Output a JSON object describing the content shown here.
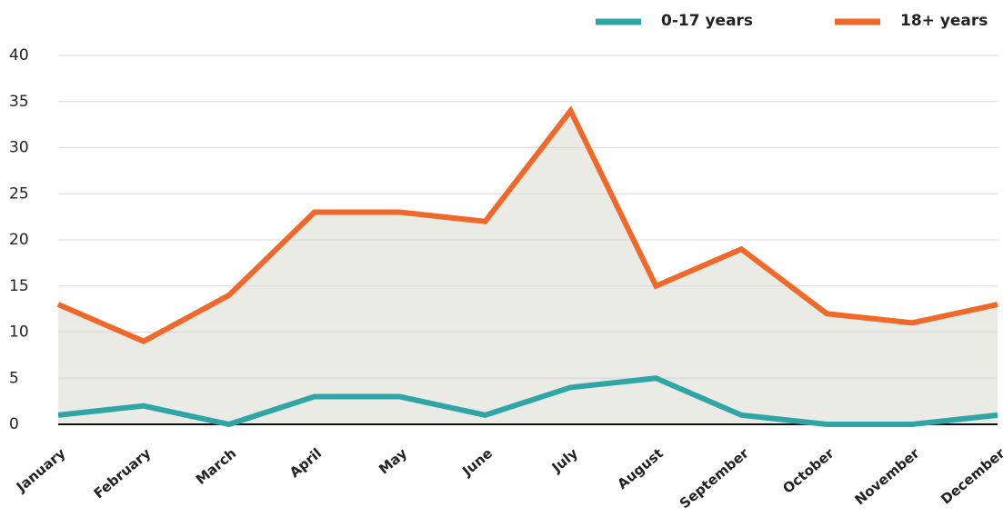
{
  "chart_data": {
    "type": "line",
    "categories": [
      "January",
      "February",
      "March",
      "April",
      "May",
      "June",
      "July",
      "August",
      "September",
      "October",
      "November",
      "December"
    ],
    "series": [
      {
        "name": "0-17 years",
        "color": "#2fa6a5",
        "values": [
          1,
          2,
          0,
          3,
          3,
          1,
          4,
          5,
          1,
          0,
          0,
          1
        ]
      },
      {
        "name": "18+ years",
        "color": "#f0692a",
        "values": [
          13,
          9,
          14,
          23,
          23,
          22,
          34,
          15,
          19,
          12,
          11,
          13
        ],
        "area_color": "#ebebe6"
      }
    ],
    "ylim": [
      0,
      40
    ],
    "yticks": [
      0,
      5,
      10,
      15,
      20,
      25,
      30,
      35,
      40
    ],
    "grid": true,
    "legend": "top-right"
  }
}
